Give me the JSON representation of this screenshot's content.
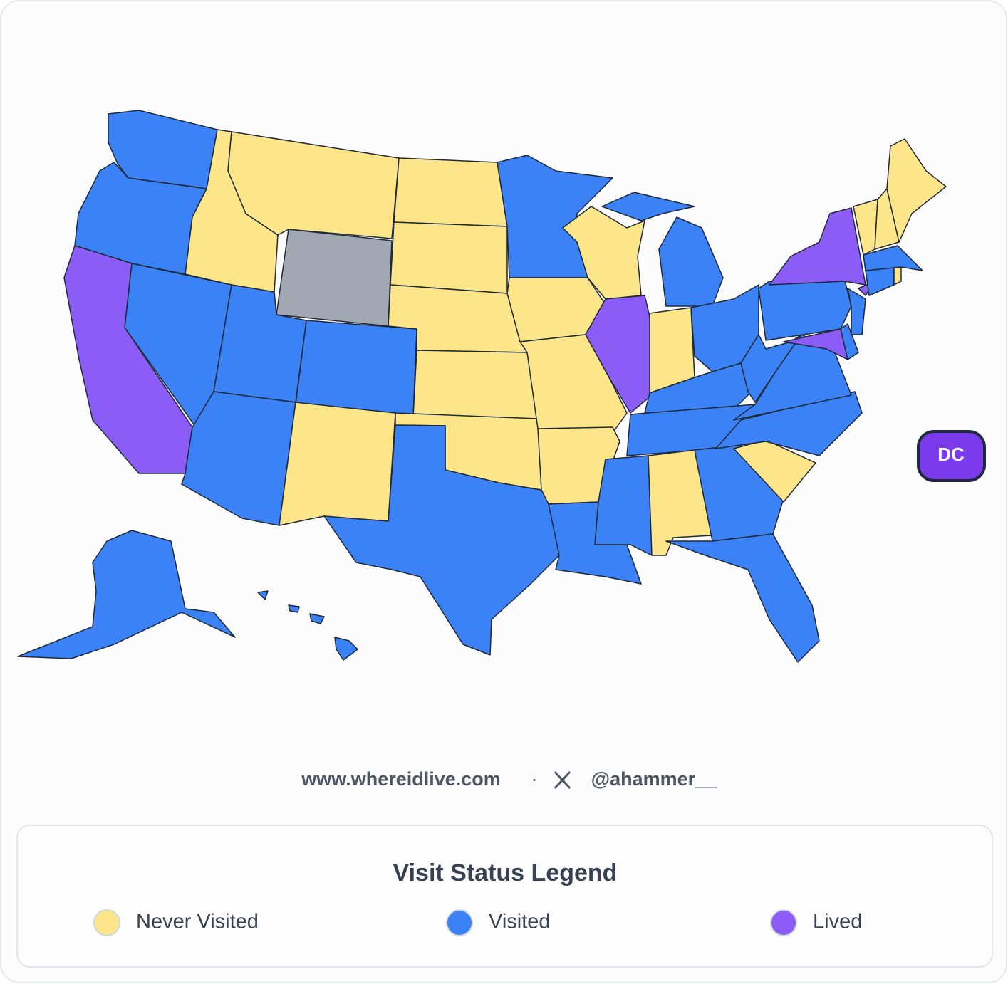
{
  "footer": {
    "site": "www.whereidlive.com",
    "separator": "·",
    "handle": "@ahammer__"
  },
  "badge": {
    "label": "DC"
  },
  "legend": {
    "title": "Visit Status Legend",
    "items": [
      {
        "name": "Never Visited",
        "color": "#fde68a"
      },
      {
        "name": "Visited",
        "color": "#3b82f6"
      },
      {
        "name": "Lived",
        "color": "#8b5cf6"
      }
    ]
  }
}
